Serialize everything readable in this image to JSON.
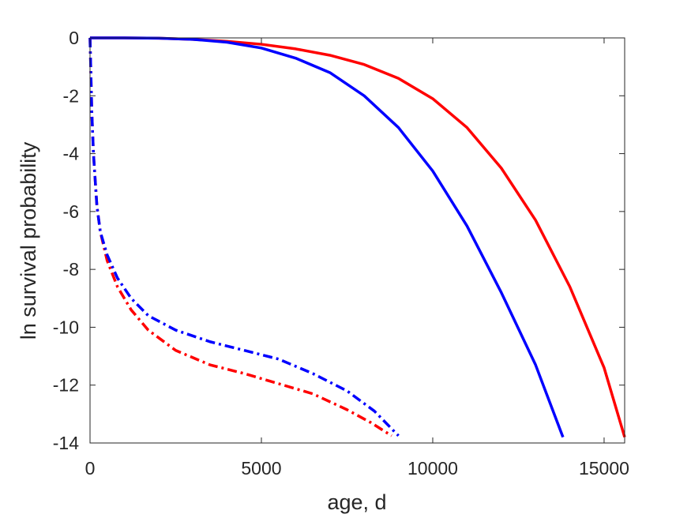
{
  "chart_data": {
    "type": "line",
    "title": "",
    "xlabel": "age, d",
    "ylabel": "ln survival probability",
    "xlim": [
      0,
      15600
    ],
    "ylim": [
      -14,
      0
    ],
    "xticks": [
      0,
      5000,
      10000,
      15000
    ],
    "yticks": [
      0,
      -2,
      -4,
      -6,
      -8,
      -10,
      -12,
      -14
    ],
    "grid": false,
    "legend": "none",
    "series": [
      {
        "style": "solid",
        "color": "#ff0000",
        "points": [
          [
            0,
            0
          ],
          [
            1000,
            0
          ],
          [
            2000,
            -0.01
          ],
          [
            3000,
            -0.05
          ],
          [
            4000,
            -0.12
          ],
          [
            5000,
            -0.22
          ],
          [
            6000,
            -0.38
          ],
          [
            7000,
            -0.6
          ],
          [
            8000,
            -0.92
          ],
          [
            9000,
            -1.4
          ],
          [
            10000,
            -2.1
          ],
          [
            11000,
            -3.1
          ],
          [
            12000,
            -4.5
          ],
          [
            13000,
            -6.3
          ],
          [
            14000,
            -8.6
          ],
          [
            15000,
            -11.4
          ],
          [
            15600,
            -13.8
          ]
        ]
      },
      {
        "style": "solid",
        "color": "#0000ff",
        "points": [
          [
            0,
            0
          ],
          [
            1000,
            0
          ],
          [
            2000,
            -0.01
          ],
          [
            3000,
            -0.05
          ],
          [
            4000,
            -0.15
          ],
          [
            5000,
            -0.35
          ],
          [
            6000,
            -0.7
          ],
          [
            7000,
            -1.2
          ],
          [
            8000,
            -2.0
          ],
          [
            9000,
            -3.1
          ],
          [
            10000,
            -4.6
          ],
          [
            11000,
            -6.5
          ],
          [
            12000,
            -8.8
          ],
          [
            13000,
            -11.3
          ],
          [
            13800,
            -13.8
          ]
        ]
      },
      {
        "style": "dashdot",
        "color": "#ff0000",
        "points": [
          [
            0,
            0
          ],
          [
            20,
            -1.0
          ],
          [
            50,
            -2.5
          ],
          [
            100,
            -4.0
          ],
          [
            200,
            -5.8
          ],
          [
            300,
            -6.7
          ],
          [
            500,
            -7.7
          ],
          [
            800,
            -8.6
          ],
          [
            1200,
            -9.4
          ],
          [
            1700,
            -10.1
          ],
          [
            2500,
            -10.8
          ],
          [
            3500,
            -11.3
          ],
          [
            4500,
            -11.6
          ],
          [
            5500,
            -11.95
          ],
          [
            6500,
            -12.3
          ],
          [
            7500,
            -12.85
          ],
          [
            8200,
            -13.3
          ],
          [
            8800,
            -13.75
          ]
        ]
      },
      {
        "style": "dashdot",
        "color": "#0000ff",
        "points": [
          [
            0,
            0
          ],
          [
            20,
            -1.0
          ],
          [
            50,
            -2.5
          ],
          [
            100,
            -4.0
          ],
          [
            200,
            -5.8
          ],
          [
            300,
            -6.7
          ],
          [
            500,
            -7.5
          ],
          [
            800,
            -8.3
          ],
          [
            1200,
            -9.0
          ],
          [
            1700,
            -9.6
          ],
          [
            2500,
            -10.1
          ],
          [
            3500,
            -10.5
          ],
          [
            4500,
            -10.8
          ],
          [
            5500,
            -11.1
          ],
          [
            6500,
            -11.6
          ],
          [
            7500,
            -12.2
          ],
          [
            8300,
            -12.9
          ],
          [
            9000,
            -13.75
          ]
        ]
      }
    ]
  }
}
